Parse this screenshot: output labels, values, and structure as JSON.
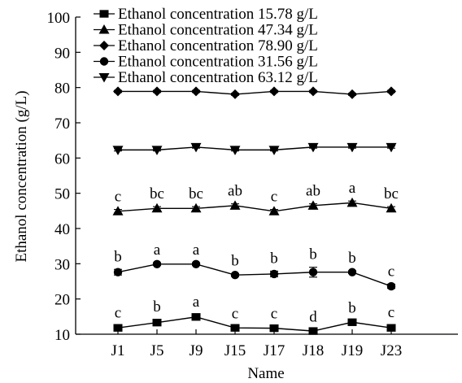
{
  "chart_data": {
    "type": "line",
    "xlabel": "Name",
    "ylabel": "Ethanol concentration (g/L)",
    "categories": [
      "J1",
      "J5",
      "J9",
      "J15",
      "J17",
      "J18",
      "J19",
      "J23"
    ],
    "ylim": [
      10,
      100
    ],
    "yticks": [
      10,
      20,
      30,
      40,
      50,
      60,
      70,
      80,
      90,
      100
    ],
    "grid": false,
    "legend_position": "top-left",
    "series": [
      {
        "name": "Ethanol concentration 15.78 g/L",
        "marker": "square",
        "values": [
          11.8,
          13.3,
          14.9,
          11.8,
          11.7,
          10.9,
          13.4,
          11.8
        ],
        "errors": [
          0.6,
          0.8,
          0.6,
          0.4,
          0.5,
          0.4,
          0.4,
          0.7
        ],
        "labels": [
          "c",
          "b",
          "a",
          "c",
          "c",
          "d",
          "b",
          "c"
        ]
      },
      {
        "name": "Ethanol concentration 47.34 g/L",
        "marker": "triangle-up",
        "values": [
          44.9,
          45.7,
          45.7,
          46.5,
          44.9,
          46.5,
          47.3,
          45.7
        ],
        "errors": [
          0.5,
          0.5,
          0.5,
          0.5,
          0.5,
          0.5,
          0.5,
          0.5
        ],
        "labels": [
          "c",
          "bc",
          "bc",
          "ab",
          "c",
          "ab",
          "a",
          "bc"
        ]
      },
      {
        "name": "Ethanol concentration 78.90 g/L",
        "marker": "diamond",
        "values": [
          78.9,
          78.9,
          78.9,
          78.1,
          78.9,
          78.9,
          78.1,
          78.9
        ],
        "errors": [
          0.3,
          0.3,
          0.3,
          0.3,
          0.3,
          0.3,
          0.3,
          0.3
        ],
        "labels": []
      },
      {
        "name": "Ethanol concentration 31.56 g/L",
        "marker": "circle",
        "values": [
          27.6,
          29.9,
          29.9,
          26.8,
          27.1,
          27.6,
          27.6,
          23.6
        ],
        "errors": [
          0.8,
          0.4,
          0.4,
          0.4,
          0.8,
          1.4,
          0.4,
          0.6
        ],
        "labels": [
          "b",
          "a",
          "a",
          "b",
          "b",
          "b",
          "b",
          "c"
        ]
      },
      {
        "name": "Ethanol concentration 63.12 g/L",
        "marker": "triangle-down",
        "values": [
          62.3,
          62.3,
          63.1,
          62.3,
          62.3,
          63.1,
          63.1,
          63.1
        ],
        "errors": [
          0.3,
          0.3,
          0.3,
          0.3,
          0.3,
          0.3,
          0.3,
          0.3
        ],
        "labels": []
      }
    ],
    "legend_order": [
      0,
      1,
      2,
      3,
      4
    ],
    "color": "#000000"
  }
}
